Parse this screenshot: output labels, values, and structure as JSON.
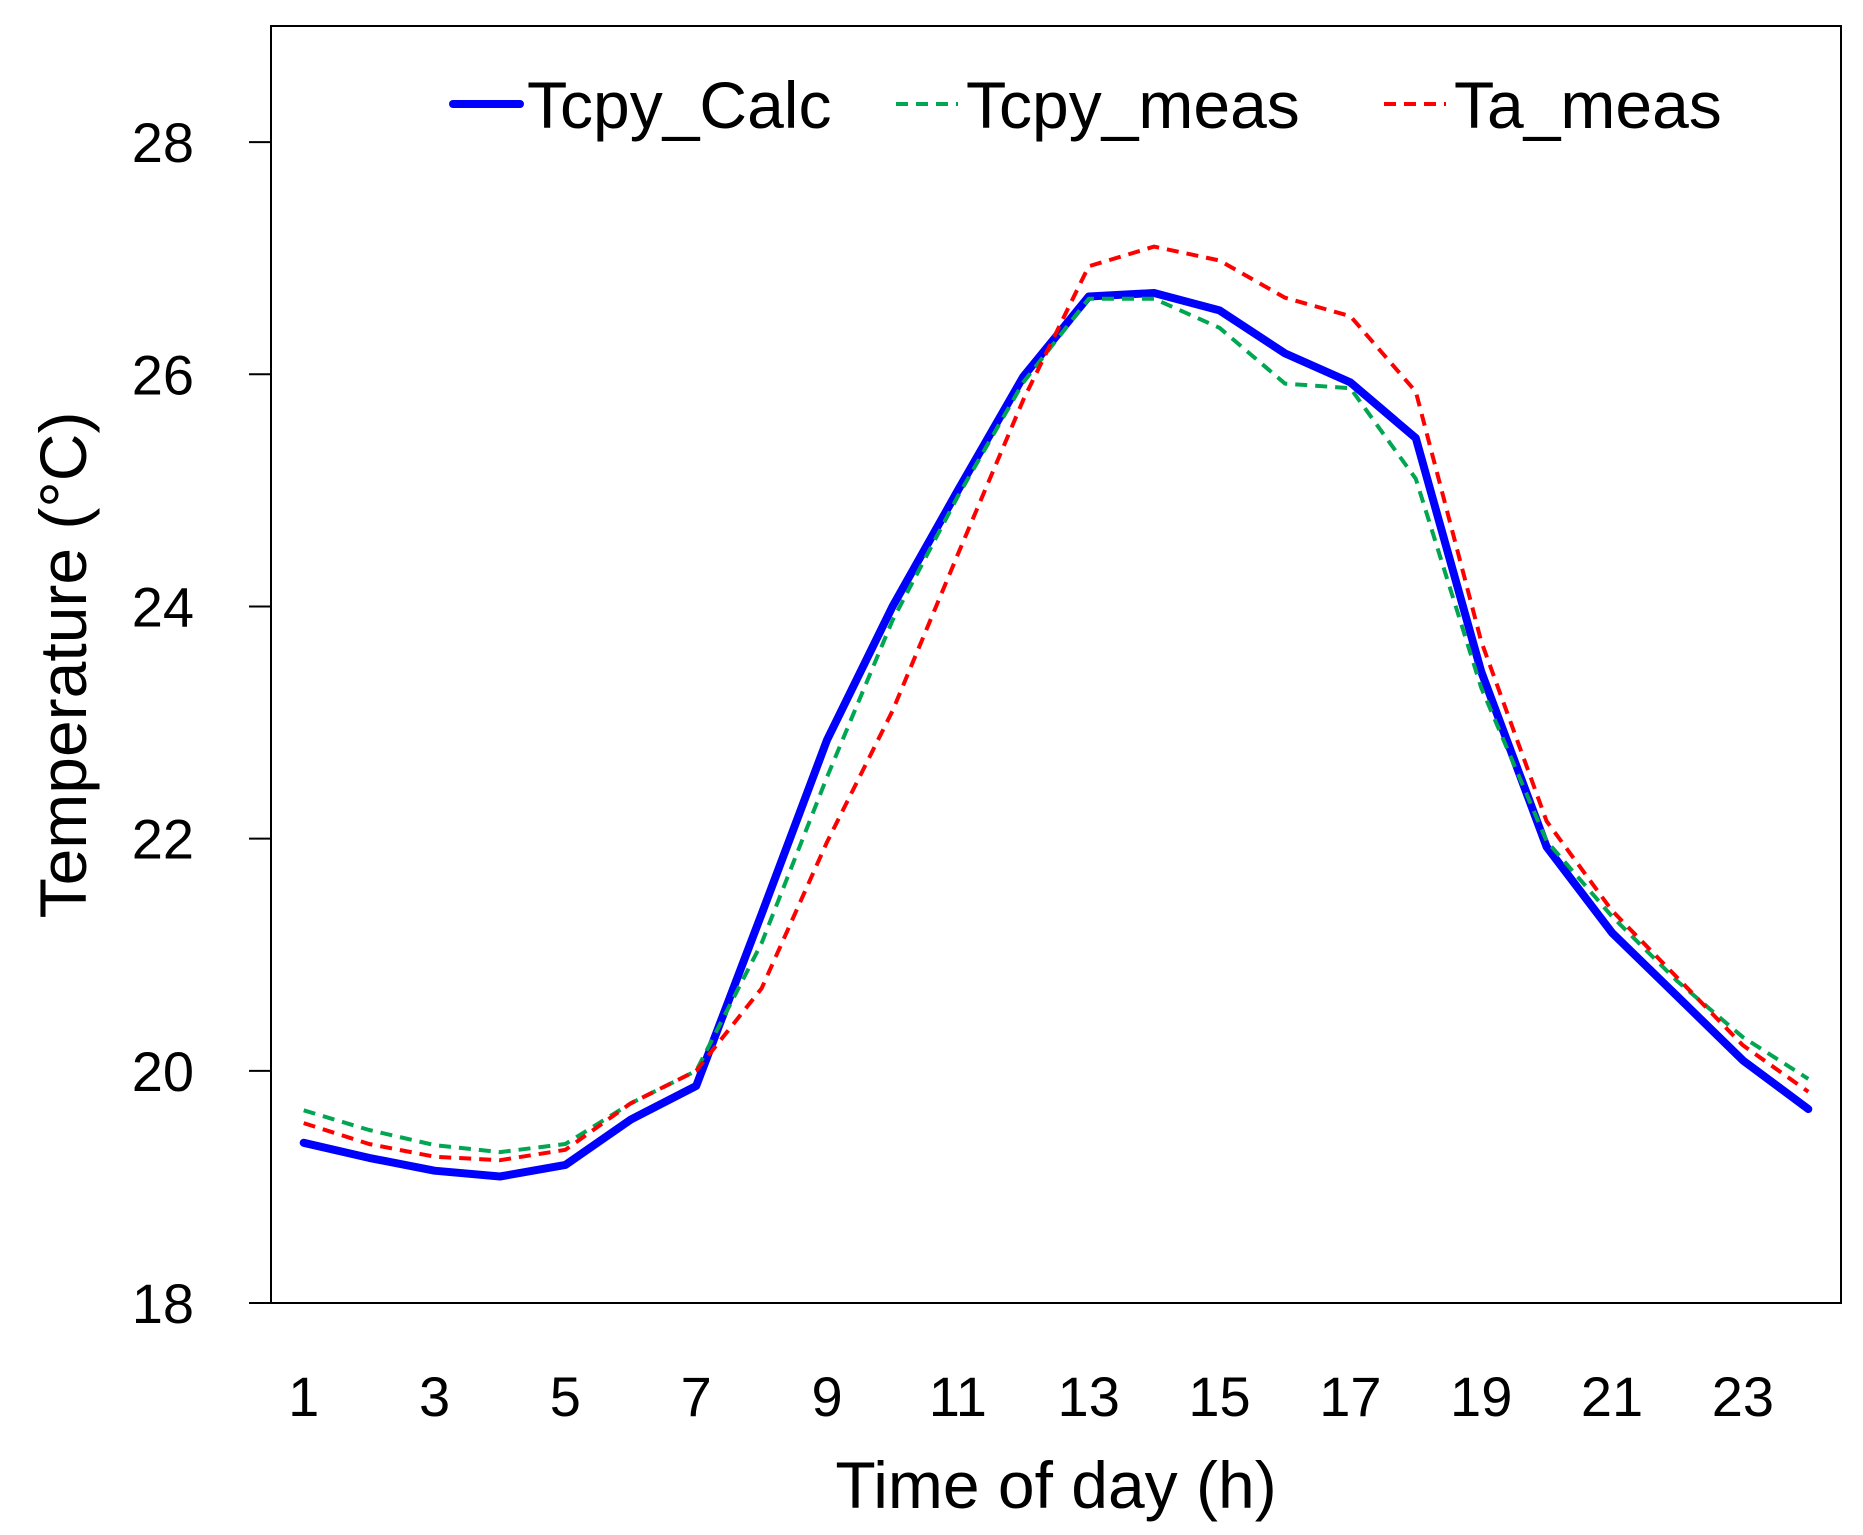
{
  "chart_data": {
    "type": "line",
    "title": "",
    "xlabel": "Time of day (h)",
    "ylabel": "Temperature (°C)",
    "xlim": [
      0.5,
      24.5
    ],
    "ylim": [
      18,
      29
    ],
    "x": [
      1,
      2,
      3,
      4,
      5,
      6,
      7,
      8,
      9,
      10,
      11,
      12,
      13,
      14,
      15,
      16,
      17,
      18,
      19,
      20,
      21,
      22,
      23,
      24
    ],
    "x_ticks": [
      1,
      3,
      5,
      7,
      9,
      11,
      13,
      15,
      17,
      19,
      21,
      23
    ],
    "x_tick_labels": [
      "1",
      "3",
      "5",
      "7",
      "9",
      "11",
      "13",
      "15",
      "17",
      "19",
      "21",
      "23"
    ],
    "y_ticks": [
      18,
      20,
      22,
      24,
      26,
      28
    ],
    "y_tick_labels": [
      "18",
      "20",
      "22",
      "24",
      "26",
      "28"
    ],
    "legend_position": "top",
    "series": [
      {
        "name": "Tcpy_Calc",
        "color": "#0000ff",
        "style": "solid",
        "values": [
          19.38,
          19.25,
          19.14,
          19.09,
          19.19,
          19.58,
          19.87,
          21.35,
          22.85,
          24.0,
          25.0,
          25.98,
          26.67,
          26.7,
          26.55,
          26.18,
          25.93,
          25.45,
          23.44,
          21.93,
          21.19,
          20.64,
          20.09,
          19.67
        ]
      },
      {
        "name": "Tcpy_meas",
        "color": "#00a651",
        "style": "dashed",
        "values": [
          19.66,
          19.49,
          19.36,
          19.3,
          19.37,
          19.72,
          20.0,
          21.1,
          22.53,
          23.88,
          24.95,
          25.93,
          26.65,
          26.65,
          26.4,
          25.92,
          25.88,
          25.1,
          23.3,
          21.98,
          21.33,
          20.77,
          20.29,
          19.93
        ]
      },
      {
        "name": "Ta_meas",
        "color": "#ff0000",
        "style": "dashed",
        "values": [
          19.55,
          19.37,
          19.26,
          19.23,
          19.32,
          19.72,
          20.0,
          20.71,
          21.97,
          23.1,
          24.45,
          25.78,
          26.93,
          27.1,
          26.98,
          26.66,
          26.5,
          25.85,
          23.7,
          22.15,
          21.38,
          20.8,
          20.22,
          19.82
        ]
      }
    ]
  }
}
